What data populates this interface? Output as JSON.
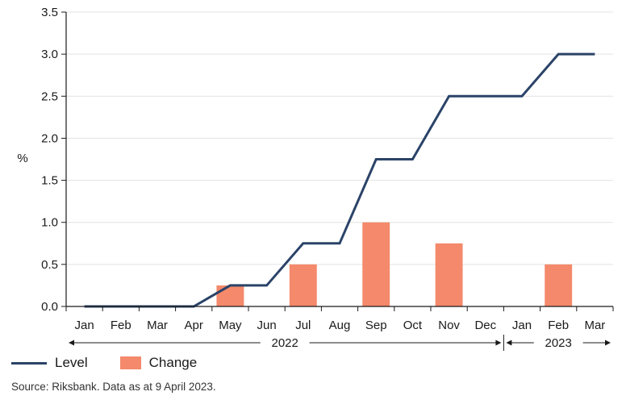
{
  "chart_data": {
    "type": "bar+line",
    "ylabel": "%",
    "ylim": [
      0,
      3.5
    ],
    "yticks": [
      "0.0",
      "0.5",
      "1.0",
      "1.5",
      "2.0",
      "2.5",
      "3.0",
      "3.5"
    ],
    "categories": [
      "Jan",
      "Feb",
      "Mar",
      "Apr",
      "May",
      "Jun",
      "Jul",
      "Aug",
      "Sep",
      "Oct",
      "Nov",
      "Dec",
      "Jan",
      "Feb",
      "Mar"
    ],
    "year_labels": [
      {
        "label": "2022",
        "from": 0,
        "to": 11
      },
      {
        "label": "2023",
        "from": 12,
        "to": 14
      }
    ],
    "level_path": [
      {
        "x": 0,
        "y": 0
      },
      {
        "x": 3,
        "y": 0
      },
      {
        "x": 4,
        "y": 0.25
      },
      {
        "x": 5,
        "y": 0.25
      },
      {
        "x": 6,
        "y": 0.75
      },
      {
        "x": 7,
        "y": 0.75
      },
      {
        "x": 8,
        "y": 1.75
      },
      {
        "x": 9,
        "y": 1.75
      },
      {
        "x": 10,
        "y": 2.5
      },
      {
        "x": 12,
        "y": 2.5
      },
      {
        "x": 13,
        "y": 3.0
      },
      {
        "x": 14,
        "y": 3.0
      }
    ],
    "change_bars": [
      {
        "category": 4,
        "value": 0.25
      },
      {
        "category": 6,
        "value": 0.5
      },
      {
        "category": 8,
        "value": 1.0
      },
      {
        "category": 10,
        "value": 0.75
      },
      {
        "category": 13,
        "value": 0.5
      }
    ],
    "legend": {
      "placement": "bottom-left"
    },
    "grid": "horizontal"
  },
  "legend_items": [
    {
      "label": "Level",
      "color": "#2b4368"
    },
    {
      "label": "Change",
      "color": "#f4896b"
    }
  ],
  "source": "Source: Riksbank. Data as at 9 April 2023."
}
